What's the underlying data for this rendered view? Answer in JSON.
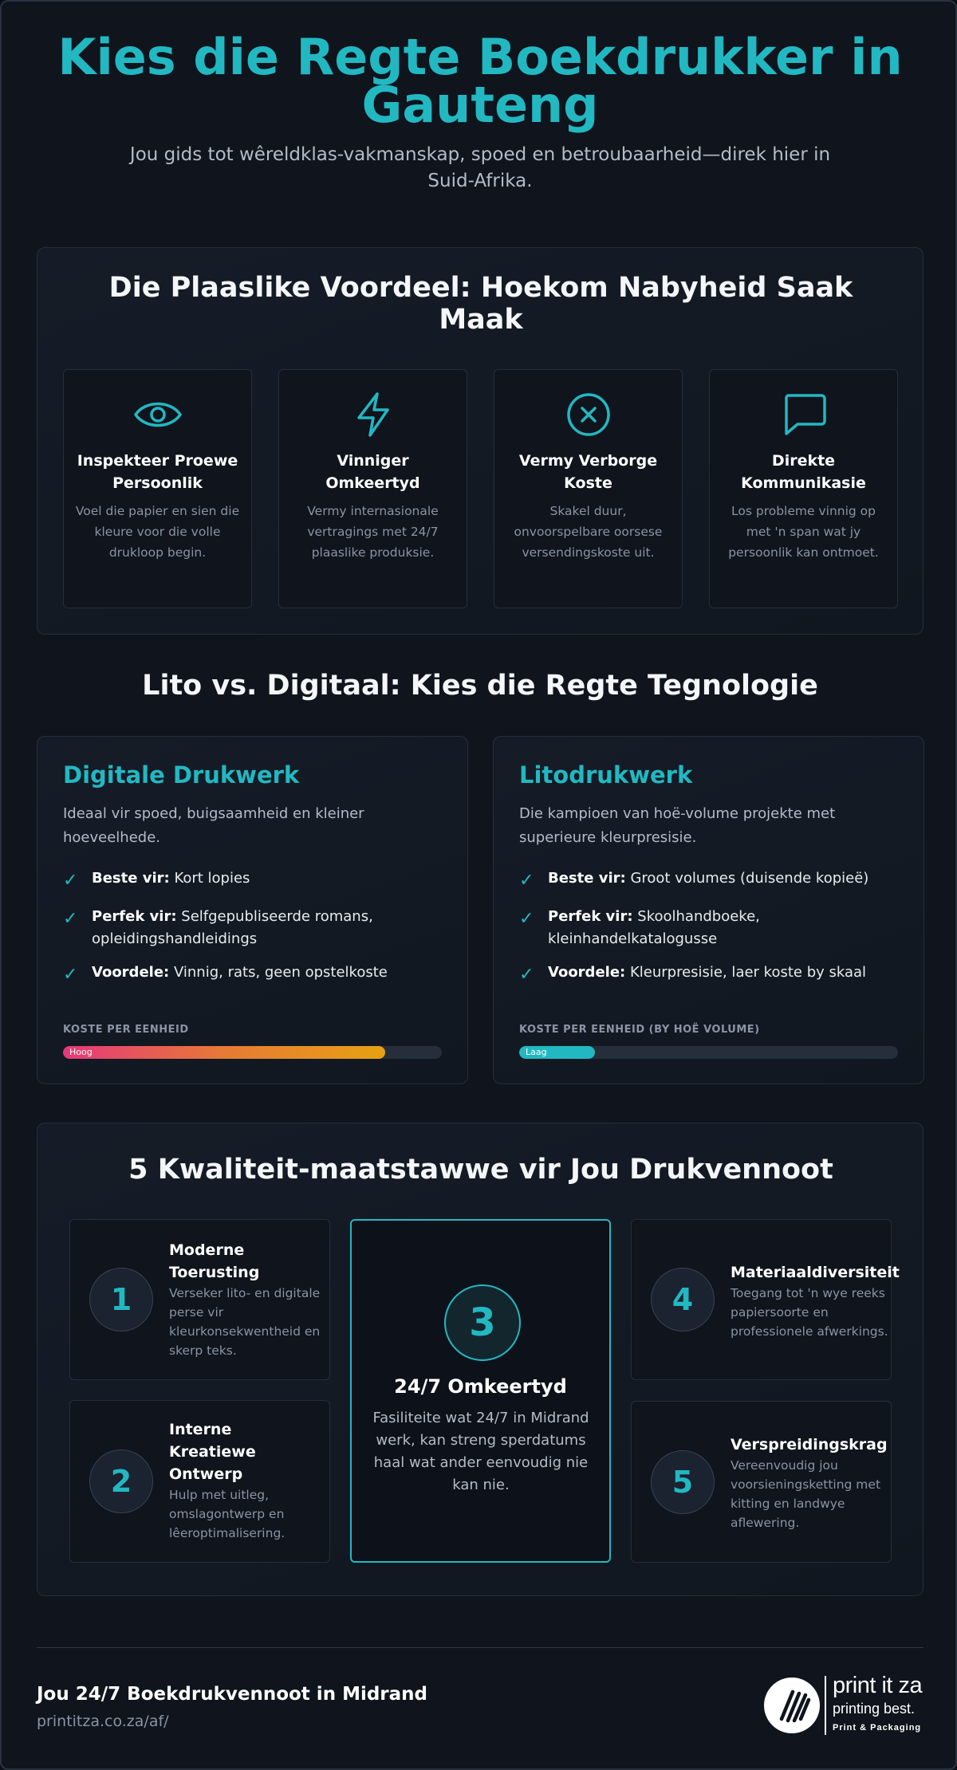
{
  "header": {
    "title": "Kies die Regte Boekdrukker in Gauteng",
    "subtitle": "Jou gids tot wêreldklas-vakmanskap, spoed en betroubaarheid—direk hier in Suid-Afrika."
  },
  "advantage": {
    "title": "Die Plaaslike Voordeel: Hoekom Nabyheid Saak Maak",
    "cards": [
      {
        "icon": "eye-icon",
        "title": "Inspekteer Proewe Persoonlik",
        "desc": "Voel die papier en sien die kleure voor die volle drukloop begin."
      },
      {
        "icon": "lightning-icon",
        "title": "Vinniger Omkeertyd",
        "desc": "Vermy internasionale vertragings met 24/7 plaaslike produksie."
      },
      {
        "icon": "x-circle-icon",
        "title": "Vermy Verborge Koste",
        "desc": "Skakel duur, onvoorspelbare oorsese versendingskoste uit."
      },
      {
        "icon": "chat-bubble-icon",
        "title": "Direkte Kommunikasie",
        "desc": "Los probleme vinnig op met 'n span wat jy persoonlik kan ontmoet."
      }
    ]
  },
  "technology": {
    "title": "Lito vs. Digitaal: Kies die Regte Tegnologie",
    "digital": {
      "name": "Digitale Drukwerk",
      "intro": "Ideaal vir spoed, buigsaamheid en kleiner hoeveelhede.",
      "items": [
        {
          "label": "Beste vir:",
          "text": "Kort lopies"
        },
        {
          "label": "Perfek vir:",
          "text": "Selfgepubliseerde romans, opleidingshandleidings"
        },
        {
          "label": "Voordele:",
          "text": "Vinnig, rats, geen opstelkoste"
        }
      ],
      "cost_label": "KOSTE PER EENHEID",
      "cost_level": "Hoog",
      "cost_fraction": 0.85
    },
    "litho": {
      "name": "Litodrukwerk",
      "intro": "Die kampioen van hoë-volume projekte met superieure kleurpresisie.",
      "items": [
        {
          "label": "Beste vir:",
          "text": "Groot volumes (duisende kopieë)"
        },
        {
          "label": "Perfek vir:",
          "text": "Skoolhandboeke, kleinhandelkatalogusse"
        },
        {
          "label": "Voordele:",
          "text": "Kleurpresisie, laer koste by skaal"
        }
      ],
      "cost_label": "KOSTE PER EENHEID (BY HOË VOLUME)",
      "cost_level": "Laag",
      "cost_fraction": 0.2
    }
  },
  "quality": {
    "title": "5 Kwaliteit-maatstawwe vir Jou Drukvennoot",
    "items": [
      {
        "num": "1",
        "title": "Moderne Toerusting",
        "desc": "Verseker lito- en digitale perse vir kleurkonsekwentheid en skerp teks."
      },
      {
        "num": "2",
        "title": "Interne Kreatiewe Ontwerp",
        "desc": "Hulp met uitleg, omslagontwerp en lêeroptimalisering."
      },
      {
        "num": "3",
        "title": "24/7 Omkeertyd",
        "desc": "Fasiliteite wat 24/7 in Midrand werk, kan streng sperdatums haal wat ander eenvoudig nie kan nie."
      },
      {
        "num": "4",
        "title": "Materiaaldiversiteit",
        "desc": "Toegang tot 'n wye reeks papiersoorte en professionele afwerkings."
      },
      {
        "num": "5",
        "title": "Verspreidingskrag",
        "desc": "Vereenvoudig jou voorsieningsketting met kitting en landwye aflewering."
      }
    ]
  },
  "footer": {
    "title": "Jou 24/7 Boekdrukvennoot in Midrand",
    "url": "printitza.co.za/af/",
    "logo": {
      "name": "print it za",
      "tagline": "printing best.",
      "sub": "Print & Packaging"
    }
  },
  "colors": {
    "accent": "#22b8c2",
    "background": "#0f141d",
    "cost_high_start": "#e6387a",
    "cost_high_end": "#e6a212"
  }
}
